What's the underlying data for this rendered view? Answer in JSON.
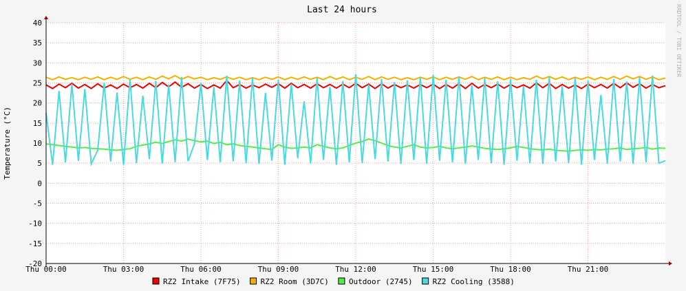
{
  "chart_data": {
    "type": "line",
    "title": "Last 24 hours",
    "y_label": "Temperature (°C)",
    "side_text": "RRDTOOL / TOBI OETIKER",
    "x": [
      0,
      0.25,
      0.5,
      0.75,
      1,
      1.25,
      1.5,
      1.75,
      2,
      2.25,
      2.5,
      2.75,
      3,
      3.25,
      3.5,
      3.75,
      4,
      4.25,
      4.5,
      4.75,
      5,
      5.25,
      5.5,
      5.75,
      6,
      6.25,
      6.5,
      6.75,
      7,
      7.25,
      7.5,
      7.75,
      8,
      8.25,
      8.5,
      8.75,
      9,
      9.25,
      9.5,
      9.75,
      10,
      10.25,
      10.5,
      10.75,
      11,
      11.25,
      11.5,
      11.75,
      12,
      12.25,
      12.5,
      12.75,
      13,
      13.25,
      13.5,
      13.75,
      14,
      14.25,
      14.5,
      14.75,
      15,
      15.25,
      15.5,
      15.75,
      16,
      16.25,
      16.5,
      16.75,
      17,
      17.25,
      17.5,
      17.75,
      18,
      18.25,
      18.5,
      18.75,
      19,
      19.25,
      19.5,
      19.75,
      20,
      20.25,
      20.5,
      20.75,
      21,
      21.25,
      21.5,
      21.75,
      22,
      22.25,
      22.5,
      22.75,
      23,
      23.25,
      23.5,
      23.75,
      24
    ],
    "xlim": [
      0,
      24
    ],
    "xticks": [
      {
        "value": 0,
        "label": "Thu 00:00"
      },
      {
        "value": 3,
        "label": "Thu 03:00"
      },
      {
        "value": 6,
        "label": "Thu 06:00"
      },
      {
        "value": 9,
        "label": "Thu 09:00"
      },
      {
        "value": 12,
        "label": "Thu 12:00"
      },
      {
        "value": 15,
        "label": "Thu 15:00"
      },
      {
        "value": 18,
        "label": "Thu 18:00"
      },
      {
        "value": 21,
        "label": "Thu 21:00"
      }
    ],
    "ylim": [
      -20,
      40
    ],
    "yticks": [
      -20,
      -15,
      -10,
      -5,
      0,
      5,
      10,
      15,
      20,
      25,
      30,
      35,
      40
    ],
    "grid": true,
    "series": [
      {
        "name": "RZ2 Intake (7F75)",
        "color": "#ea0000",
        "values": [
          24.5,
          23.6,
          24.7,
          23.8,
          24.9,
          23.7,
          24.6,
          23.6,
          24.8,
          23.7,
          24.5,
          23.6,
          24.7,
          23.8,
          24.6,
          23.7,
          24.9,
          23.8,
          25.1,
          24.0,
          25.2,
          23.9,
          24.8,
          23.7,
          24.6,
          23.6,
          24.5,
          23.7,
          25.6,
          23.8,
          24.6,
          23.7,
          24.5,
          23.8,
          24.7,
          23.9,
          24.8,
          23.7,
          24.9,
          23.8,
          24.6,
          23.7,
          24.8,
          23.8,
          24.6,
          23.7,
          24.7,
          23.8,
          24.9,
          23.8,
          24.7,
          23.6,
          24.8,
          23.7,
          24.6,
          23.8,
          24.5,
          23.7,
          24.6,
          23.8,
          24.7,
          23.6,
          24.6,
          23.7,
          24.8,
          23.6,
          24.9,
          23.7,
          24.6,
          23.8,
          24.7,
          23.7,
          24.6,
          23.8,
          24.5,
          23.7,
          25.0,
          23.8,
          24.9,
          23.6,
          24.6,
          23.7,
          24.5,
          23.6,
          24.7,
          23.8,
          24.6,
          23.7,
          24.9,
          23.8,
          25.0,
          23.9,
          24.8,
          23.7,
          24.6,
          23.8,
          24.3
        ]
      },
      {
        "name": "RZ2 Room (3D7C)",
        "color": "#ecb300",
        "values": [
          26.4,
          25.8,
          26.5,
          25.9,
          26.3,
          25.8,
          26.4,
          25.9,
          26.5,
          25.8,
          26.4,
          25.9,
          26.6,
          25.9,
          26.4,
          25.8,
          26.5,
          25.9,
          26.7,
          26.0,
          26.8,
          25.9,
          26.6,
          26.0,
          26.4,
          25.8,
          26.3,
          25.9,
          26.5,
          25.9,
          26.4,
          25.8,
          26.3,
          25.8,
          26.4,
          25.9,
          26.5,
          25.8,
          26.4,
          25.9,
          26.5,
          25.9,
          26.4,
          25.8,
          26.6,
          25.9,
          26.5,
          25.8,
          26.4,
          25.9,
          26.6,
          25.8,
          26.5,
          25.9,
          26.4,
          25.8,
          26.3,
          25.8,
          26.4,
          25.9,
          26.5,
          25.8,
          26.4,
          25.9,
          26.5,
          25.9,
          26.6,
          25.8,
          26.4,
          25.9,
          26.5,
          25.8,
          26.4,
          25.8,
          26.3,
          25.9,
          26.7,
          26.0,
          26.6,
          25.9,
          26.5,
          25.8,
          26.4,
          25.9,
          26.5,
          25.8,
          26.4,
          25.9,
          26.6,
          25.9,
          26.7,
          26.0,
          26.6,
          25.9,
          26.5,
          25.8,
          26.2
        ]
      },
      {
        "name": "Outdoor (2745)",
        "color": "#54ec48",
        "values": [
          9.8,
          9.6,
          9.4,
          9.2,
          9.0,
          8.8,
          8.9,
          8.7,
          8.6,
          8.5,
          8.3,
          8.2,
          8.4,
          8.6,
          9.2,
          9.5,
          9.8,
          10.2,
          9.9,
          10.4,
          10.8,
          10.5,
          11.0,
          10.6,
          10.3,
          10.5,
          9.9,
          10.2,
          9.6,
          9.8,
          9.4,
          9.2,
          9.0,
          8.8,
          8.6,
          8.4,
          9.6,
          9.0,
          8.7,
          8.8,
          9.0,
          8.8,
          9.6,
          9.2,
          8.8,
          8.6,
          8.8,
          9.4,
          10.0,
          10.4,
          11.0,
          10.6,
          10.0,
          9.4,
          9.0,
          8.8,
          9.2,
          9.6,
          9.0,
          8.8,
          8.9,
          9.2,
          8.8,
          8.6,
          8.8,
          9.0,
          9.3,
          9.0,
          8.7,
          8.5,
          8.4,
          8.6,
          8.8,
          9.2,
          8.9,
          8.6,
          8.4,
          8.3,
          8.5,
          8.2,
          8.1,
          8.0,
          8.2,
          8.3,
          8.2,
          8.4,
          8.3,
          8.5,
          8.6,
          8.8,
          8.4,
          8.6,
          8.7,
          8.9,
          8.5,
          8.8,
          8.7
        ]
      },
      {
        "name": "RZ2 Cooling (3588)",
        "color": "#49d9e0",
        "values": [
          17.5,
          4.6,
          23.0,
          5.2,
          24.8,
          5.6,
          23.5,
          4.8,
          8.2,
          25.0,
          5.4,
          22.6,
          4.6,
          26.0,
          5.0,
          21.8,
          6.0,
          25.5,
          4.9,
          24.6,
          5.2,
          26.5,
          5.5,
          9.8,
          25.0,
          5.8,
          24.0,
          5.2,
          26.8,
          5.4,
          25.6,
          5.0,
          26.3,
          4.8,
          22.5,
          5.6,
          25.8,
          4.6,
          24.8,
          6.2,
          20.4,
          4.9,
          26.2,
          5.8,
          24.0,
          4.6,
          25.5,
          5.2,
          27.2,
          5.0,
          24.6,
          6.0,
          26.0,
          5.4,
          25.2,
          4.8,
          25.6,
          5.8,
          26.4,
          4.9,
          27.0,
          5.6,
          25.8,
          5.2,
          26.6,
          4.8,
          24.4,
          5.8,
          26.2,
          5.0,
          25.4,
          4.6,
          26.0,
          5.6,
          24.2,
          5.0,
          25.8,
          4.8,
          26.6,
          5.4,
          24.2,
          5.0,
          26.2,
          4.6,
          25.6,
          5.8,
          22.0,
          4.9,
          26.0,
          5.4,
          25.4,
          4.8,
          26.4,
          5.2,
          26.8,
          5.0,
          5.6
        ]
      }
    ]
  }
}
